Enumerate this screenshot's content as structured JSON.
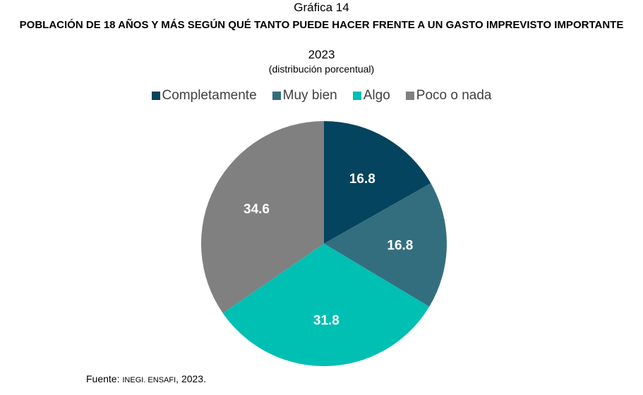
{
  "chart_data": {
    "type": "pie",
    "figure_label": "Gráfica 14",
    "title": "POBLACIÓN DE 18 AÑOS Y MÁS SEGÚN QUÉ TANTO PUEDE HACER FRENTE A UN GASTO IMPREVISTO IMPORTANTE",
    "year": "2023",
    "subtitle": "(distribución porcentual)",
    "legend_position": "top",
    "categories": [
      "Completamente",
      "Muy bien",
      "Algo",
      "Poco o nada"
    ],
    "values": [
      16.8,
      16.8,
      31.8,
      34.6
    ],
    "labels": [
      "16.8",
      "16.8",
      "31.8",
      "34.6"
    ],
    "colors": [
      "#05445e",
      "#336e7f",
      "#00bfb3",
      "#808080"
    ]
  },
  "source": {
    "prefix": "Fuente: ",
    "org": "INEGI. ENSAFI",
    "suffix": ", 2023."
  }
}
